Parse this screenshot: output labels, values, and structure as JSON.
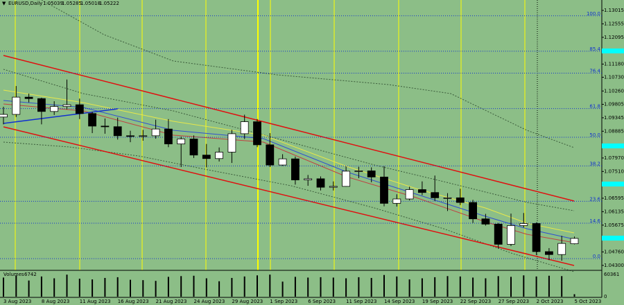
{
  "chart_data": [
    {
      "type": "candlestick",
      "title": "EURUSD,Daily",
      "categories": [
        "3 Aug 2023",
        null,
        null,
        "8 Aug 2023",
        null,
        null,
        "11 Aug 2023",
        null,
        null,
        "16 Aug 2023",
        null,
        null,
        "21 Aug 2023",
        null,
        null,
        "24 Aug 2023",
        null,
        null,
        "29 Aug 2023",
        null,
        null,
        "1 Sep 2023",
        null,
        null,
        "6 Sep 2023",
        null,
        null,
        "11 Sep 2023",
        null,
        null,
        "14 Sep 2023",
        null,
        null,
        "19 Sep 2023",
        null,
        null,
        "22 Sep 2023",
        null,
        null,
        "27 Sep 2023",
        null,
        null,
        "2 Oct 2023",
        null,
        null,
        "5 Oct 2023"
      ],
      "open": [
        1.0937,
        1.0946,
        1.1005,
        1.1,
        1.0956,
        1.0973,
        1.0979,
        1.0949,
        1.0906,
        1.0904,
        1.0873,
        1.0872,
        1.0873,
        1.0896,
        1.0845,
        1.0862,
        1.0807,
        1.0795,
        1.0817,
        1.088,
        1.0921,
        1.0842,
        1.0773,
        1.0794,
        1.0722,
        1.0726,
        1.0697,
        1.07,
        1.0752,
        1.0753,
        1.0732,
        1.0642,
        1.0657,
        1.0689,
        1.0679,
        1.0661,
        1.0661,
        1.0645,
        1.0589,
        1.0571,
        1.0502,
        1.0566,
        1.0573,
        1.0477,
        1.0467,
        1.05039
      ],
      "high": [
        1.0972,
        1.1043,
        1.1017,
        1.1003,
        1.0991,
        1.1065,
        1.1,
        1.0955,
        1.0932,
        1.0935,
        1.089,
        1.0893,
        1.0928,
        1.093,
        1.087,
        1.0874,
        1.0845,
        1.0833,
        1.0893,
        1.0945,
        1.093,
        1.0882,
        1.081,
        1.0802,
        1.0739,
        1.0734,
        1.0717,
        1.0768,
        1.0767,
        1.0765,
        1.0769,
        1.0673,
        1.0699,
        1.0717,
        1.0737,
        1.0677,
        1.0692,
        1.0654,
        1.0606,
        1.0575,
        1.0607,
        1.0609,
        1.0577,
        1.0489,
        1.0531,
        1.05285
      ],
      "low": [
        1.0912,
        1.0937,
        1.0987,
        1.0912,
        1.0944,
        1.0963,
        1.093,
        1.0882,
        1.088,
        1.086,
        1.0851,
        1.0856,
        1.0863,
        1.0834,
        1.0766,
        1.0797,
        1.0765,
        1.0785,
        1.078,
        1.0862,
        1.0834,
        1.0766,
        1.077,
        1.0706,
        1.0702,
        1.0686,
        1.0686,
        1.0699,
        1.0728,
        1.0714,
        1.0632,
        1.0631,
        1.0652,
        1.067,
        1.065,
        1.0616,
        1.0636,
        1.0575,
        1.0566,
        1.0488,
        1.0496,
        1.056,
        1.0465,
        1.0448,
        1.0446,
        1.05018
      ],
      "close": [
        1.0946,
        1.1005,
        1.1,
        1.0956,
        1.0973,
        1.0979,
        1.0949,
        1.0906,
        1.0904,
        1.0873,
        1.0872,
        1.0873,
        1.0896,
        1.0845,
        1.0862,
        1.0807,
        1.0795,
        1.0817,
        1.088,
        1.0921,
        1.0842,
        1.0773,
        1.0794,
        1.0722,
        1.0726,
        1.0697,
        1.07,
        1.0752,
        1.0753,
        1.0732,
        1.0642,
        1.0657,
        1.0689,
        1.0679,
        1.0661,
        1.0661,
        1.0645,
        1.0589,
        1.0571,
        1.0502,
        1.0566,
        1.0573,
        1.0477,
        1.0467,
        1.0505,
        1.05222
      ],
      "up_color": "#ffffff",
      "down_color": "#000000",
      "ylim": [
        1.0413,
        1.1337
      ],
      "yticks": [
        {
          "value": 1.13015,
          "label": "1.13015"
        },
        {
          "value": 1.12555,
          "label": "1.12555"
        },
        {
          "value": 1.12095,
          "label": "1.12095"
        },
        {
          "value": 1.1118,
          "label": "1.11180"
        },
        {
          "value": 1.1073,
          "label": "1.10730"
        },
        {
          "value": 1.1026,
          "label": "1.10260"
        },
        {
          "value": 1.09805,
          "label": "1.09805"
        },
        {
          "value": 1.09345,
          "label": "1.09345"
        },
        {
          "value": 1.08885,
          "label": "1.08885"
        },
        {
          "value": 1.0797,
          "label": "1.07970"
        },
        {
          "value": 1.0751,
          "label": "1.07510"
        },
        {
          "value": 1.06595,
          "label": "1.06595"
        },
        {
          "value": 1.06135,
          "label": "1.06135"
        },
        {
          "value": 1.05675,
          "label": "1.05675"
        },
        {
          "value": 1.0476,
          "label": "1.04760"
        },
        {
          "value": 1.043,
          "label": "1.04300"
        }
      ],
      "levels": [
        {
          "value": 1.1283,
          "label": "100.0"
        },
        {
          "value": 1.1162,
          "label": "85.4"
        },
        {
          "value": 1.1087,
          "label": "76.4"
        },
        {
          "value": 1.0966,
          "label": "61.8"
        },
        {
          "value": 1.0868,
          "label": "50.0"
        },
        {
          "value": 1.077,
          "label": "38.2"
        },
        {
          "value": 1.0649,
          "label": "23.6"
        },
        {
          "value": 1.0574,
          "label": "14.6"
        },
        {
          "value": 1.0453,
          "label": "0.0"
        }
      ],
      "level_color": "#1030d0"
    },
    {
      "type": "bar",
      "title": "Volumes",
      "values": [
        52000,
        58000,
        44000,
        55000,
        50000,
        60000,
        49000,
        47000,
        51000,
        53000,
        46000,
        45000,
        43000,
        54000,
        56000,
        57000,
        50000,
        42000,
        51000,
        55000,
        58000,
        60000,
        41000,
        54000,
        52000,
        53000,
        52000,
        50000,
        53000,
        51000,
        59000,
        55000,
        47000,
        50000,
        53000,
        56000,
        55000,
        52000,
        50000,
        56000,
        54000,
        58000,
        55000,
        57000,
        56000,
        6742
      ],
      "color": "#000000",
      "ylim": [
        0,
        60361
      ],
      "yticks": [
        0,
        60361
      ]
    }
  ]
}
